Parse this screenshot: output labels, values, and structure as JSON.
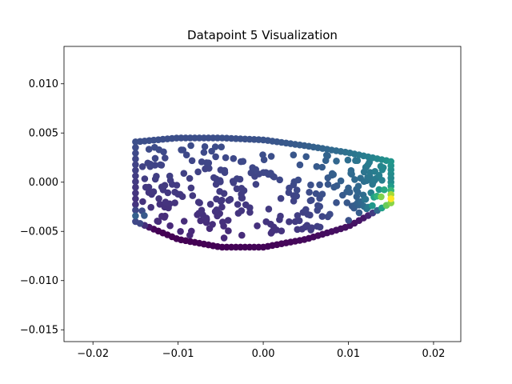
{
  "chart_data": {
    "type": "scatter",
    "title": "Datapoint 5 Visualization",
    "xlabel": "",
    "ylabel": "",
    "xlim": [
      -0.0234,
      0.0232
    ],
    "ylim": [
      -0.0162,
      0.0138
    ],
    "xticks": [
      -0.02,
      -0.01,
      0.0,
      0.01,
      0.02
    ],
    "xtick_labels": [
      "−0.02",
      "−0.01",
      "0.00",
      "0.01",
      "0.02"
    ],
    "yticks": [
      0.01,
      0.005,
      0.0,
      -0.005,
      -0.01,
      -0.015
    ],
    "ytick_labels": [
      "0.010",
      "0.005",
      "0.000",
      "−0.005",
      "−0.010",
      "−0.015"
    ],
    "grid": false,
    "colormap": "viridis",
    "shape": {
      "x_min": -0.015,
      "x_max": 0.015,
      "top_edge": [
        [
          -0.015,
          0.0041
        ],
        [
          -0.01,
          0.0045
        ],
        [
          -0.005,
          0.0045
        ],
        [
          0.0,
          0.0043
        ],
        [
          0.005,
          0.0037
        ],
        [
          0.01,
          0.003
        ],
        [
          0.015,
          0.0021
        ]
      ],
      "bottom_edge": [
        [
          -0.015,
          -0.004
        ],
        [
          -0.01,
          -0.0058
        ],
        [
          -0.005,
          -0.0066
        ],
        [
          0.0,
          -0.0066
        ],
        [
          0.005,
          -0.0058
        ],
        [
          0.01,
          -0.0045
        ],
        [
          0.015,
          -0.0021
        ]
      ],
      "approx_point_count": 420
    },
    "color_range": {
      "min_color": "#440154",
      "max_color": "#fde725",
      "mid_color": "#21918c"
    }
  }
}
